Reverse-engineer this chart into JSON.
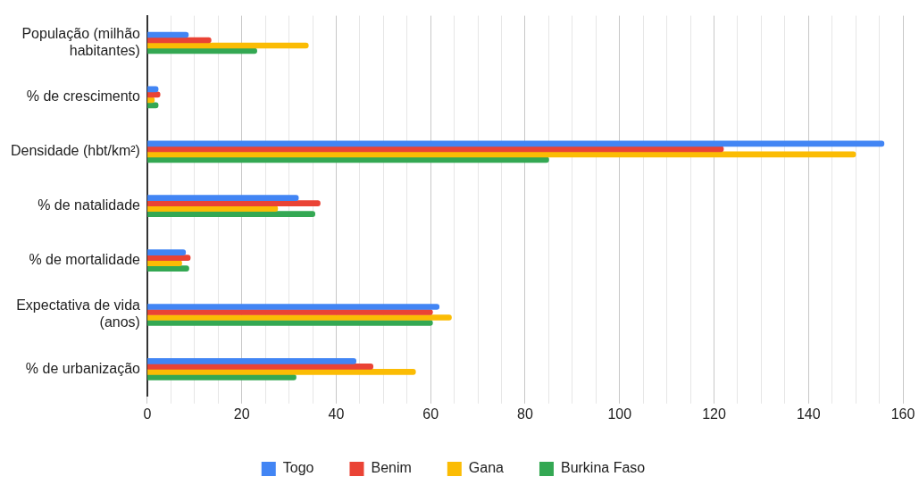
{
  "chart_data": {
    "type": "bar",
    "orientation": "horizontal",
    "categories": [
      "População (milhão habitantes)",
      "% de crescimento",
      "Densidade (hbt/km²)",
      "% de natalidade",
      "% de mortalidade",
      "Expectativa de vida (anos)",
      "% de urbanização"
    ],
    "series": [
      {
        "name": "Togo",
        "color": "#4285f4",
        "values": [
          8.7,
          2.3,
          156,
          32,
          8.1,
          61.8,
          44.2
        ]
      },
      {
        "name": "Benim",
        "color": "#ea4335",
        "values": [
          13.5,
          2.7,
          122,
          36.6,
          9.1,
          60.4,
          47.8
        ]
      },
      {
        "name": "Gana",
        "color": "#fbbc04",
        "values": [
          34.1,
          1.5,
          150,
          27.6,
          7.3,
          64.4,
          56.8
        ]
      },
      {
        "name": "Burkina Faso",
        "color": "#34a853",
        "values": [
          23.2,
          2.3,
          85,
          35.5,
          8.8,
          60.4,
          31.5
        ]
      }
    ],
    "xlim": [
      0,
      160
    ],
    "xticks": [
      0,
      {
        "value": 5,
        "label": null
      },
      {
        "value": 10,
        "label": null
      },
      {
        "value": 15,
        "label": null
      },
      20,
      {
        "value": 25,
        "label": null
      },
      {
        "value": 30,
        "label": null
      },
      {
        "value": 35,
        "label": null
      },
      40,
      {
        "value": 45,
        "label": null
      },
      {
        "value": 50,
        "label": null
      },
      {
        "value": 55,
        "label": null
      },
      60,
      {
        "value": 65,
        "label": null
      },
      {
        "value": 70,
        "label": null
      },
      {
        "value": 75,
        "label": null
      },
      80,
      {
        "value": 85,
        "label": null
      },
      {
        "value": 90,
        "label": null
      },
      {
        "value": 95,
        "label": null
      },
      100,
      {
        "value": 105,
        "label": null
      },
      {
        "value": 110,
        "label": null
      },
      {
        "value": 115,
        "label": null
      },
      120,
      {
        "value": 125,
        "label": null
      },
      {
        "value": 130,
        "label": null
      },
      {
        "value": 135,
        "label": null
      },
      140,
      {
        "value": 145,
        "label": null
      },
      {
        "value": 150,
        "label": null
      },
      {
        "value": 155,
        "label": null
      },
      160
    ],
    "grid": "x",
    "legend": "bottom"
  }
}
